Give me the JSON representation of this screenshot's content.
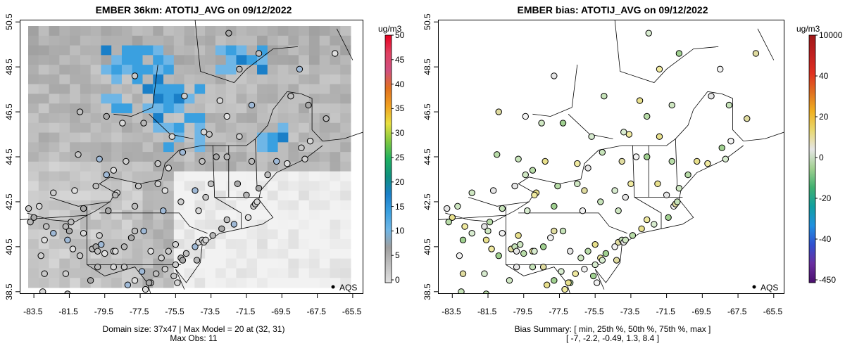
{
  "left": {
    "title": "EMBER 36km: ATOTIJ_AVG on 09/12/2022",
    "footer_line1": "Domain size: 37x47 | Max Model = 20 at (32, 31)",
    "footer_line2": "Max Obs: 11",
    "legend_label": "AQS",
    "colorbar": {
      "unit": "ug/m3",
      "labels": [
        "50",
        "45",
        "40",
        "35",
        "30",
        "25",
        "20",
        "15",
        "10",
        "5",
        "0"
      ]
    }
  },
  "right": {
    "title": "EMBER bias: ATOTIJ_AVG on 09/12/2022",
    "footer_line1": "Bias Summary: [ min, 25th %, 50th %, 75th %, max ]",
    "footer_line2": "[ -7,   -2.2,   -0.49,   1.3,   8.4 ]",
    "legend_label": "AQS",
    "colorbar": {
      "unit": "ug/m3",
      "labels": [
        "10000",
        "40",
        "20",
        "0",
        "-20",
        "-40",
        "-450"
      ]
    }
  },
  "axes": {
    "x_ticks": [
      "-83.5",
      "-81.5",
      "-79.5",
      "-77.5",
      "-75.5",
      "-73.5",
      "-71.5",
      "-69.5",
      "-67.5",
      "-65.5"
    ],
    "y_ticks": [
      "50.5",
      "48.5",
      "46.5",
      "44.5",
      "42.5",
      "40.5",
      "38.5"
    ]
  },
  "colors": {
    "conc_scale": [
      "#e0e0e0",
      "#c0c0c0",
      "#9e9e9e",
      "#6fb6e6",
      "#3aa0e0",
      "#1a7fc8",
      "#0f8f7f",
      "#1fb060",
      "#80c840",
      "#e8e040",
      "#f0a020",
      "#e07020",
      "#d05080",
      "#e04060",
      "#e80020"
    ],
    "bias_scale": [
      "#4b0f6e",
      "#6a2ea0",
      "#3050d0",
      "#2090e0",
      "#10a0a0",
      "#40b070",
      "#a0d090",
      "#e6e6e6",
      "#e8d870",
      "#f0b020",
      "#e07020",
      "#e03020",
      "#c02020",
      "#a01818"
    ]
  },
  "sites": {
    "coords_note": "lon/lat of AQS monitor sites (data units)"
  }
}
